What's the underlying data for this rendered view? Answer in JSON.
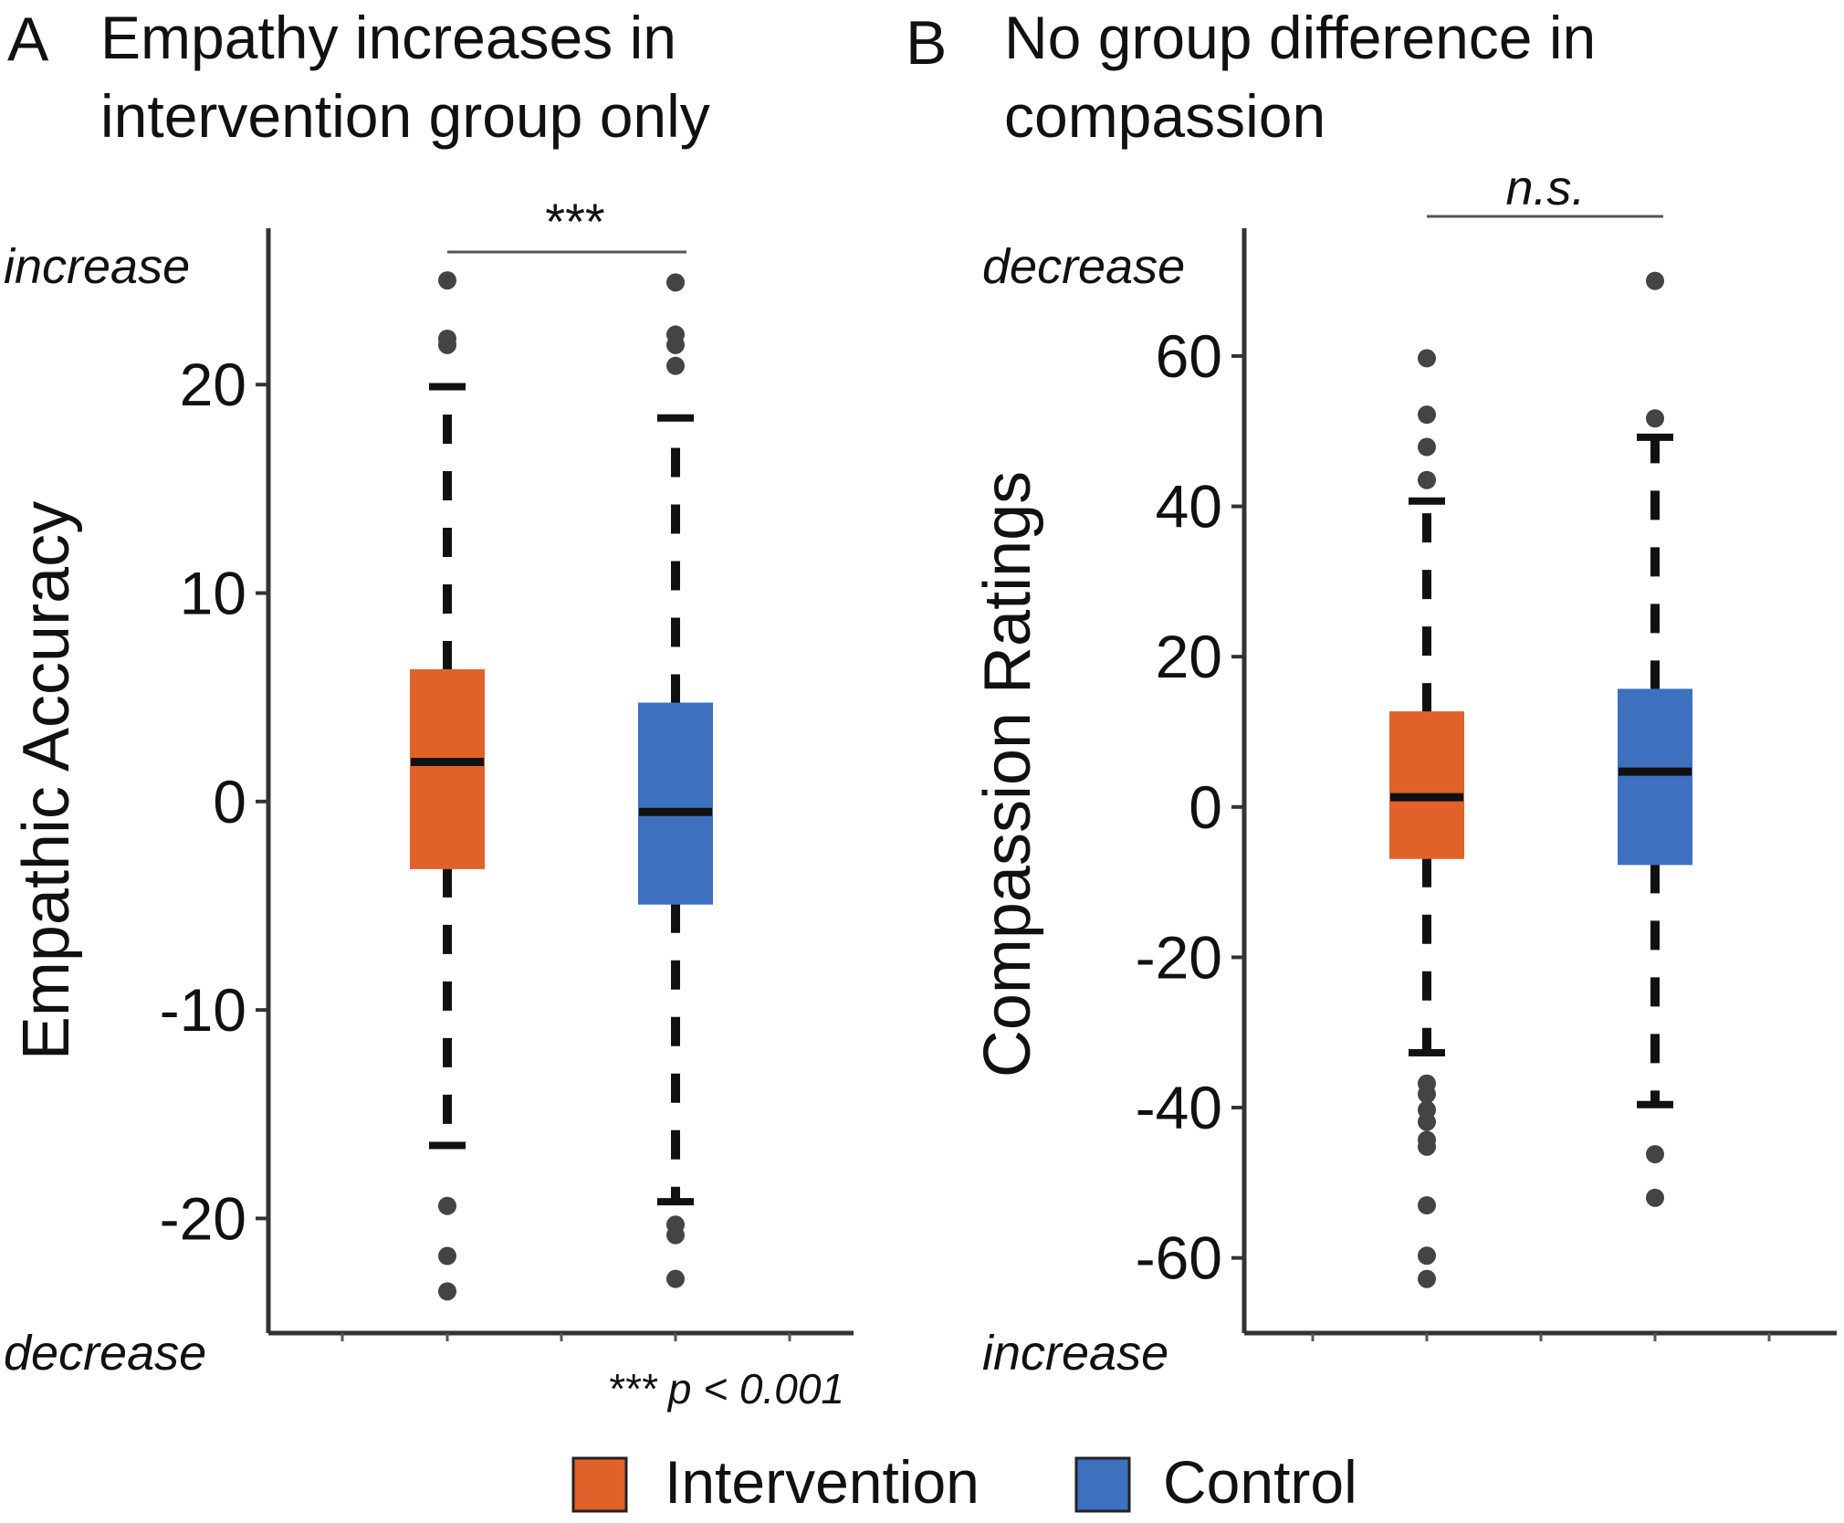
{
  "panels": [
    {
      "letter": "A",
      "title_line1": "Empathy increases in",
      "title_line2": "intervention group only",
      "top_direction": "increase",
      "bottom_direction": "decrease",
      "significance": "***",
      "footnote": "*** p < 0.001"
    },
    {
      "letter": "B",
      "title_line1": "No group difference in",
      "title_line2": "compassion",
      "top_direction": "decrease",
      "bottom_direction": "increase",
      "significance": "n.s.",
      "footnote": ""
    }
  ],
  "legend": {
    "items": [
      {
        "label": "Intervention",
        "color": "#E0622A"
      },
      {
        "label": "Control",
        "color": "#3D70BE"
      }
    ]
  },
  "chart_data": [
    {
      "type": "boxplot",
      "title": "Empathy increases in intervention group only",
      "ylabel": "Empathic Accuracy",
      "xlabel": "",
      "ylim": [
        -25.5,
        27.5
      ],
      "yticks": [
        -20,
        -10,
        0,
        10,
        20
      ],
      "grid": false,
      "legend_position": "bottom",
      "categories": [
        "Intervention",
        "Control"
      ],
      "series": [
        {
          "name": "Intervention",
          "color": "#E0622A",
          "q1": -3.2,
          "median": 1.9,
          "q3": 6.3,
          "whisker_low": -16.5,
          "whisker_high": 19.9,
          "outliers": [
            25.0,
            22.2,
            21.9,
            -19.4,
            -21.8,
            -23.5
          ]
        },
        {
          "name": "Control",
          "color": "#3D70BE",
          "q1": -4.9,
          "median": -0.5,
          "q3": 4.7,
          "whisker_low": -19.2,
          "whisker_high": 18.4,
          "outliers": [
            24.9,
            22.4,
            21.9,
            20.9,
            -20.3,
            -20.8,
            -22.9
          ]
        }
      ],
      "significance": "***"
    },
    {
      "type": "boxplot",
      "title": "No group difference in compassion",
      "ylabel": "Compassion Ratings",
      "xlabel": "",
      "ylim": [
        -70,
        77
      ],
      "yticks": [
        -60,
        -40,
        -20,
        0,
        20,
        40,
        60
      ],
      "grid": false,
      "legend_position": "bottom",
      "categories": [
        "Intervention",
        "Control"
      ],
      "series": [
        {
          "name": "Intervention",
          "color": "#E0622A",
          "q1": -6.8,
          "median": 1.3,
          "q3": 12.6,
          "whisker_low": -32.7,
          "whisker_high": 40.7,
          "outliers": [
            59.7,
            52.2,
            47.9,
            43.5,
            -36.8,
            -38.2,
            -40.3,
            -41.9,
            -44.3,
            -45.2,
            -53.0,
            -59.7,
            -62.8
          ]
        },
        {
          "name": "Control",
          "color": "#3D70BE",
          "q1": -7.6,
          "median": 4.7,
          "q3": 15.6,
          "whisker_low": -39.6,
          "whisker_high": 49.2,
          "outliers": [
            70.0,
            51.7,
            -46.2,
            -52.0
          ]
        }
      ],
      "significance": "n.s."
    }
  ]
}
